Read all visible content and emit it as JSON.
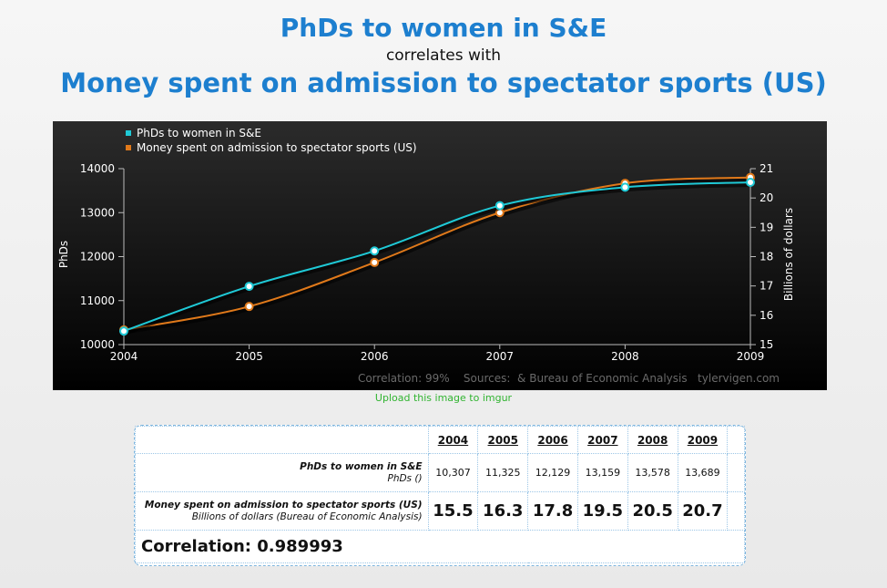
{
  "title": {
    "series1": "PhDs to women in S&E",
    "connector": "correlates with",
    "series2": "Money spent on admission to spectator sports (US)"
  },
  "chart_data": {
    "type": "line",
    "x": [
      2004,
      2005,
      2006,
      2007,
      2008,
      2009
    ],
    "series": [
      {
        "name": "PhDs to women in S&E",
        "axis": "left",
        "color": "#1fc9d6",
        "values": [
          10307,
          11325,
          12129,
          13159,
          13578,
          13689
        ]
      },
      {
        "name": "Money spent on admission to spectator sports (US)",
        "axis": "right",
        "color": "#e0791a",
        "values": [
          15.5,
          16.3,
          17.8,
          19.5,
          20.5,
          20.7
        ]
      }
    ],
    "ylabel_left": "PhDs",
    "ylabel_right": "Billions of dollars",
    "ylim_left": [
      10000,
      14000
    ],
    "ylim_right": [
      15,
      21
    ],
    "yticks_left": [
      "10000",
      "11000",
      "12000",
      "13000",
      "14000"
    ],
    "yticks_right": [
      "15",
      "16",
      "17",
      "18",
      "19",
      "20",
      "21"
    ],
    "xticks": [
      "2004",
      "2005",
      "2006",
      "2007",
      "2008",
      "2009"
    ],
    "footer": "Correlation: 99%    Sources:  & Bureau of Economic Analysis   tylervigen.com",
    "legend_position": "top-left"
  },
  "upload_link": "Upload this image to imgur",
  "table": {
    "years": [
      "2004",
      "2005",
      "2006",
      "2007",
      "2008",
      "2009"
    ],
    "row1": {
      "title": "PhDs to women in S&E",
      "unit": "PhDs ()",
      "values": [
        "10,307",
        "11,325",
        "12,129",
        "13,159",
        "13,578",
        "13,689"
      ]
    },
    "row2": {
      "title": "Money spent on admission to spectator sports (US)",
      "unit": "Billions of dollars (Bureau of Economic Analysis)",
      "values": [
        "15.5",
        "16.3",
        "17.8",
        "19.5",
        "20.5",
        "20.7"
      ]
    },
    "correlation": "Correlation: 0.989993"
  }
}
